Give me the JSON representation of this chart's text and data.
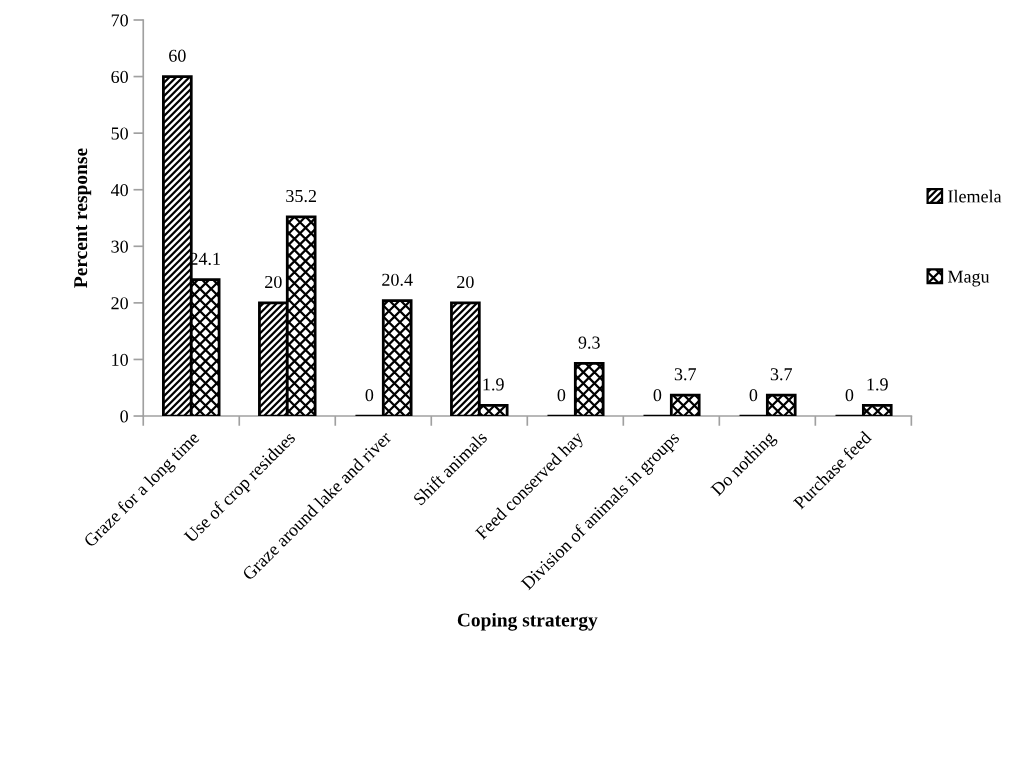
{
  "chart_data": {
    "type": "bar",
    "xlabel": "Coping stratergy",
    "ylabel": "Percent response",
    "categories": [
      "Graze for a long time",
      "Use of crop residues",
      "Graze around lake and river",
      "Shift animals",
      "Feed conserved hay",
      "Division of animals in groups",
      "Do nothing",
      "Purchase feed"
    ],
    "series": [
      {
        "name": "Ilemela",
        "color": "#000000",
        "values": [
          60,
          20,
          0,
          20,
          0,
          0,
          0,
          0
        ]
      },
      {
        "name": "Magu",
        "color": "#000000",
        "values": [
          24.1,
          35.2,
          20.4,
          1.9,
          9.3,
          3.7,
          3.7,
          1.9
        ]
      }
    ],
    "ylim": [
      0,
      70
    ],
    "yticks": [
      0,
      10,
      20,
      30,
      40,
      50,
      60,
      70
    ],
    "data_labels": true,
    "grid": false,
    "legend": "right"
  }
}
